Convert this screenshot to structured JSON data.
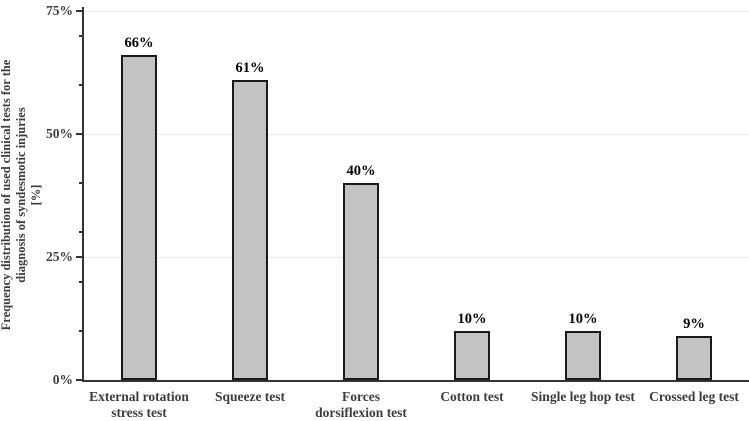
{
  "figure": {
    "background": "#ffffff"
  },
  "chart_data": {
    "type": "bar",
    "title": "",
    "categories": [
      "External rotation stress test",
      "Squeeze test",
      "Forces dorsiflexion test",
      "Cotton test",
      "Single leg hop test",
      "Crossed leg test"
    ],
    "category_lines": [
      [
        "External rotation",
        "stress test"
      ],
      [
        "Squeeze test"
      ],
      [
        "Forces",
        "dorsiflexion test"
      ],
      [
        "Cotton test"
      ],
      [
        "Single leg hop test"
      ],
      [
        "Crossed leg test"
      ]
    ],
    "values": [
      66,
      61,
      40,
      10,
      10,
      9
    ],
    "value_labels": [
      "66%",
      "61%",
      "40%",
      "10%",
      "10%",
      "9%"
    ],
    "xlabel": "",
    "ylabel": "Frequency distribution of used clinical tests for the diagnosis of syndesmotic injuries [%]",
    "ylabel_lines": [
      "Frequency distribution of used clinical tests for the",
      "diagnosis of syndesmotic injuries",
      "[%]"
    ],
    "ylim": [
      0,
      75
    ],
    "yticks": [
      {
        "value": 0,
        "label": "0%"
      },
      {
        "value": 25,
        "label": "25%"
      },
      {
        "value": 50,
        "label": "50%"
      },
      {
        "value": 75,
        "label": "75%"
      }
    ],
    "minor_yticks": [
      10,
      20,
      30,
      40,
      60,
      70
    ],
    "gridlines": [
      25,
      50,
      75
    ],
    "grid": "horizontal-major",
    "legend": "none",
    "bar_style": {
      "fill": "#c3c3c3",
      "border": "#1a1a1a"
    },
    "colors": {
      "gridline": "#e9e9e9",
      "axis": "#333333",
      "tick_label": "#3d3d3d",
      "category_label": "#3d3d3d",
      "value_label": "#000000",
      "background": "#ffffff"
    }
  }
}
